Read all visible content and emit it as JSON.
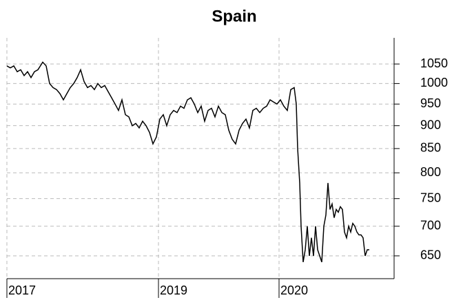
{
  "chart_data": {
    "type": "line",
    "title": "Spain",
    "x": [
      0,
      5,
      10,
      15,
      20,
      25,
      30,
      35,
      40,
      45,
      52,
      57,
      62,
      67,
      72,
      77,
      82,
      87,
      92,
      97,
      102,
      107,
      112,
      117,
      122,
      127,
      132,
      137,
      142,
      147,
      152,
      157,
      162,
      167,
      172,
      177,
      182,
      187,
      192,
      197,
      202,
      207,
      212,
      217,
      222,
      227,
      232,
      237,
      242,
      247,
      252,
      257,
      262,
      267,
      272,
      277,
      282,
      287,
      292,
      297,
      302,
      307,
      312,
      317,
      322,
      327,
      332,
      337,
      342,
      347,
      352,
      357,
      362,
      367,
      372,
      377,
      382,
      387,
      392,
      397,
      402,
      407,
      412,
      417,
      420,
      422,
      425,
      427,
      430,
      433,
      436,
      439,
      442,
      445,
      448,
      451,
      454,
      457,
      460,
      463,
      466,
      469,
      472,
      475,
      478,
      481,
      484,
      487,
      490,
      493,
      496,
      499,
      502,
      505,
      508,
      511,
      514,
      517,
      520,
      523,
      526
    ],
    "series": [
      {
        "name": "Spain",
        "color": "#000000",
        "values": [
          1045,
          1040,
          1045,
          1030,
          1035,
          1020,
          1030,
          1015,
          1030,
          1035,
          1055,
          1045,
          1000,
          990,
          985,
          975,
          960,
          975,
          990,
          1000,
          1015,
          1035,
          1005,
          990,
          995,
          985,
          1000,
          990,
          995,
          980,
          965,
          950,
          935,
          960,
          925,
          920,
          900,
          905,
          895,
          910,
          900,
          885,
          860,
          875,
          915,
          925,
          900,
          925,
          935,
          930,
          945,
          940,
          960,
          965,
          950,
          930,
          945,
          910,
          935,
          940,
          920,
          945,
          930,
          925,
          890,
          870,
          860,
          890,
          905,
          915,
          895,
          935,
          940,
          930,
          940,
          945,
          960,
          955,
          950,
          960,
          945,
          935,
          985,
          990,
          950,
          850,
          780,
          700,
          640,
          660,
          700,
          650,
          680,
          650,
          700,
          660,
          650,
          640,
          700,
          720,
          780,
          730,
          740,
          715,
          730,
          725,
          735,
          730,
          690,
          680,
          700,
          690,
          705,
          700,
          690,
          685,
          685,
          680,
          650,
          660,
          660
        ]
      }
    ],
    "xlim": [
      0,
      562
    ],
    "xticks": [
      {
        "value": 0,
        "label": "2017"
      },
      {
        "value": 220,
        "label": "2019"
      },
      {
        "value": 395,
        "label": "2020"
      }
    ],
    "ylim": [
      614,
      1121
    ],
    "log_y": true,
    "yticks": [
      650,
      700,
      750,
      800,
      850,
      900,
      950,
      1000,
      1050
    ],
    "grid": true
  }
}
